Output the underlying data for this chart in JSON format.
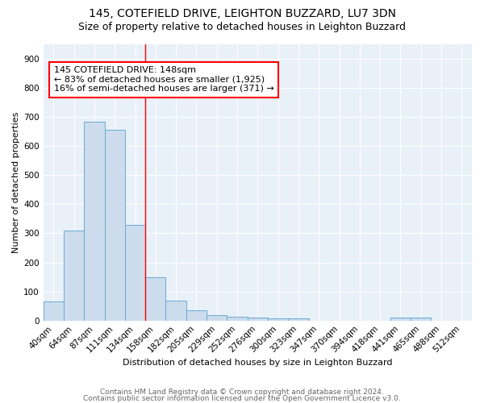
{
  "title1": "145, COTEFIELD DRIVE, LEIGHTON BUZZARD, LU7 3DN",
  "title2": "Size of property relative to detached houses in Leighton Buzzard",
  "xlabel": "Distribution of detached houses by size in Leighton Buzzard",
  "ylabel": "Number of detached properties",
  "categories": [
    "40sqm",
    "64sqm",
    "87sqm",
    "111sqm",
    "134sqm",
    "158sqm",
    "182sqm",
    "205sqm",
    "229sqm",
    "252sqm",
    "276sqm",
    "300sqm",
    "323sqm",
    "347sqm",
    "370sqm",
    "394sqm",
    "418sqm",
    "441sqm",
    "465sqm",
    "488sqm",
    "512sqm"
  ],
  "values": [
    65,
    310,
    685,
    655,
    330,
    150,
    68,
    35,
    20,
    12,
    10,
    8,
    8,
    0,
    0,
    0,
    0,
    10,
    10,
    0,
    0
  ],
  "bar_color": "#ccdcec",
  "bar_edge_color": "#6aaad4",
  "annotation_text": "145 COTEFIELD DRIVE: 148sqm\n← 83% of detached houses are smaller (1,925)\n16% of semi-detached houses are larger (371) →",
  "annotation_box_color": "white",
  "annotation_box_edge_color": "red",
  "ylim": [
    0,
    950
  ],
  "yticks": [
    0,
    100,
    200,
    300,
    400,
    500,
    600,
    700,
    800,
    900
  ],
  "footer1": "Contains HM Land Registry data © Crown copyright and database right 2024.",
  "footer2": "Contains public sector information licensed under the Open Government Licence v3.0.",
  "background_color": "#ffffff",
  "plot_bg_color": "#e8f0f8",
  "grid_color": "white",
  "title1_fontsize": 10,
  "title2_fontsize": 9,
  "axis_label_fontsize": 8,
  "tick_fontsize": 7.5,
  "annotation_fontsize": 8,
  "footer_fontsize": 6.5
}
